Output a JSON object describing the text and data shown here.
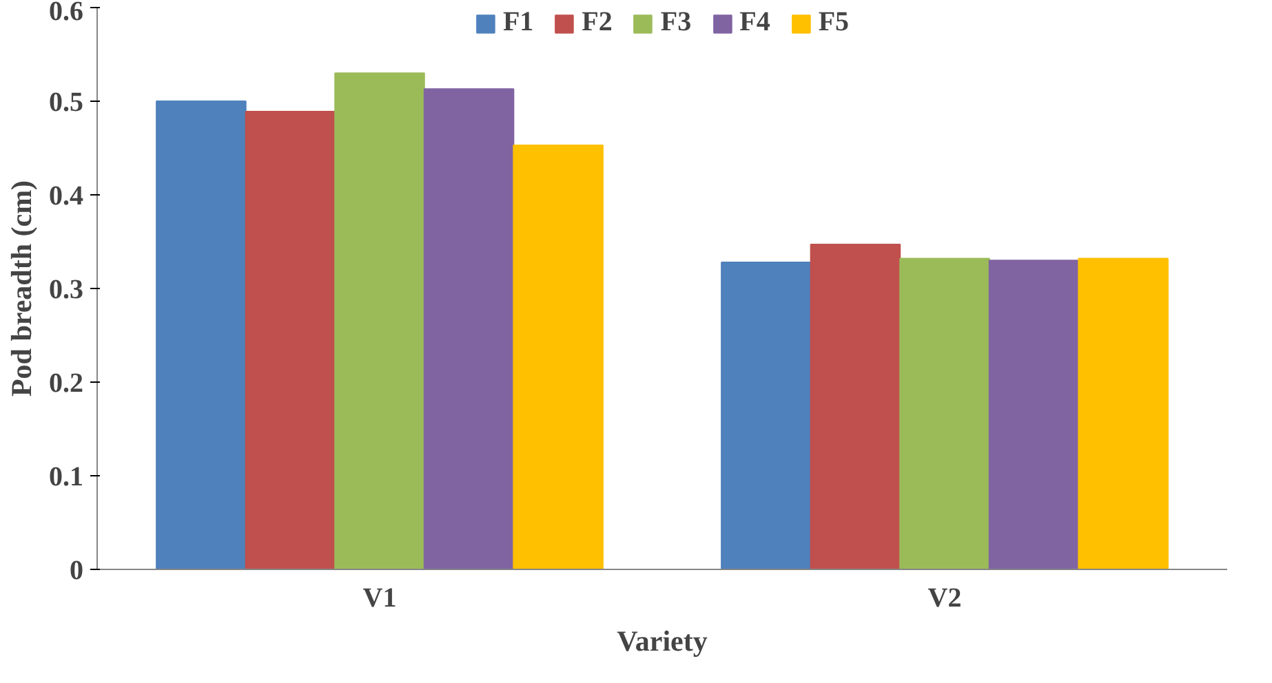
{
  "chart_data": {
    "type": "bar",
    "xlabel": "Variety",
    "ylabel": "Pod breadth (cm)",
    "categories": [
      "V1",
      "V2"
    ],
    "series": [
      {
        "name": "F1",
        "color": "#4f81bd",
        "values": [
          0.5,
          0.328
        ]
      },
      {
        "name": "F2",
        "color": "#c0504d",
        "values": [
          0.489,
          0.347
        ]
      },
      {
        "name": "F3",
        "color": "#9bbb59",
        "values": [
          0.53,
          0.332
        ]
      },
      {
        "name": "F4",
        "color": "#8064a2",
        "values": [
          0.513,
          0.33
        ]
      },
      {
        "name": "F5",
        "color": "#ffc000",
        "values": [
          0.453,
          0.332
        ]
      }
    ],
    "ylim": [
      0,
      0.6
    ],
    "yticks": [
      0,
      0.1,
      0.2,
      0.3,
      0.4,
      0.5,
      0.6
    ],
    "grid": false,
    "legend": "top"
  }
}
